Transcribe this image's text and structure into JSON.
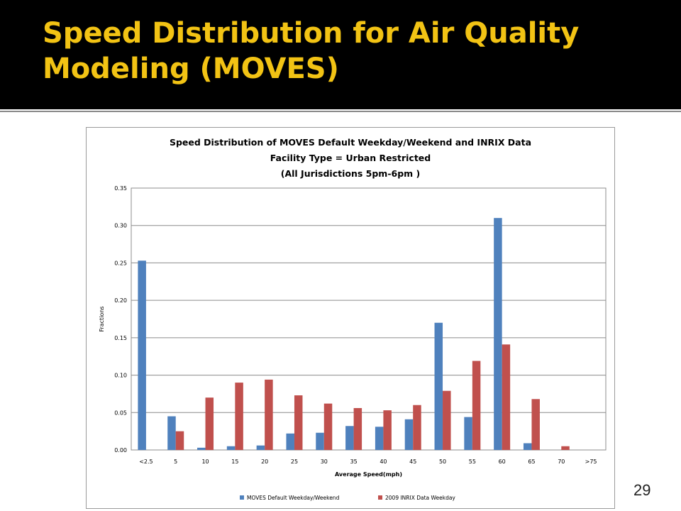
{
  "slide": {
    "title": "Speed Distribution for Air Quality Modeling (MOVES)",
    "page_number": "29"
  },
  "colors": {
    "title_background": "#000000",
    "title_text": "#f2c314",
    "series_moves": "#4f81bd",
    "series_inrix": "#c0504d"
  },
  "chart_data": {
    "type": "bar",
    "title_lines": [
      "Speed Distribution  of MOVES Default Weekday/Weekend  and INRIX Data",
      "Facility Type = Urban Restricted",
      "(All Jurisdictions 5pm-6pm  )"
    ],
    "xlabel": "Average Speed(mph)",
    "ylabel": "Fractions",
    "ylim": [
      0,
      0.35
    ],
    "yticks": [
      "0.00",
      "0.05",
      "0.10",
      "0.15",
      "0.20",
      "0.25",
      "0.30",
      "0.35"
    ],
    "grid": true,
    "legend_position": "bottom",
    "categories": [
      "<2.5",
      "5",
      "10",
      "15",
      "20",
      "25",
      "30",
      "35",
      "40",
      "45",
      "50",
      "55",
      "60",
      "65",
      "70",
      ">75"
    ],
    "series": [
      {
        "name": "MOVES Default Weekday/Weekend",
        "color": "#4f81bd",
        "values": [
          0.253,
          0.045,
          0.003,
          0.005,
          0.006,
          0.022,
          0.023,
          0.032,
          0.031,
          0.041,
          0.17,
          0.044,
          0.31,
          0.009,
          0.0,
          0.0
        ]
      },
      {
        "name": "2009 INRIX Data Weekday",
        "color": "#c0504d",
        "values": [
          0.0,
          0.025,
          0.07,
          0.09,
          0.094,
          0.073,
          0.062,
          0.056,
          0.053,
          0.06,
          0.079,
          0.119,
          0.141,
          0.068,
          0.005,
          0.0
        ]
      }
    ]
  }
}
